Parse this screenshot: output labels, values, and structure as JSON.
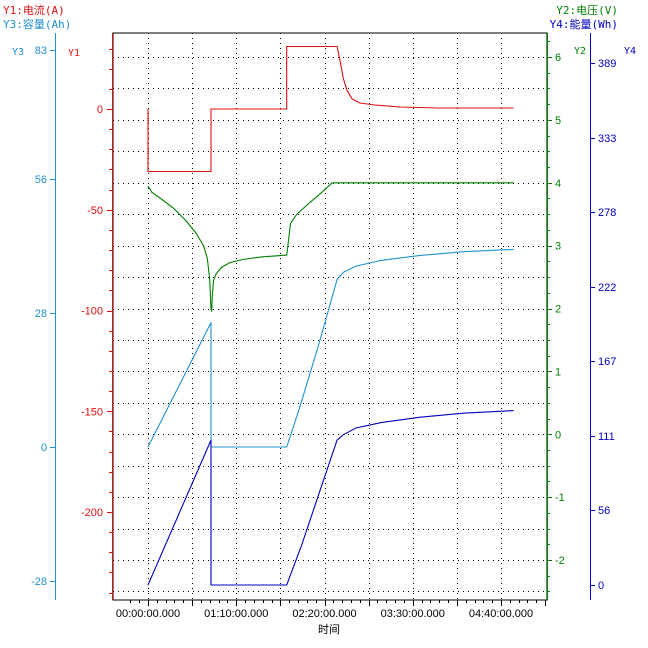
{
  "colors": {
    "y1": "#e01010",
    "y2": "#008000",
    "y3": "#2090d0",
    "y4": "#0000c0",
    "grid": "#000000",
    "frame": "#000000"
  },
  "legend": {
    "y1": "Y1:电流(A)",
    "y3": "Y3:容量(Ah)",
    "y2": "Y2:电压(V)",
    "y4": "Y4:能量(Wh)"
  },
  "axis_names": {
    "y1": "Y1",
    "y2": "Y2",
    "y3": "Y3",
    "y4": "Y4"
  },
  "chart_data": {
    "type": "line",
    "xlabel": "时间",
    "x_ticks": [
      "00:00:00.000",
      "01:10:00.000",
      "02:20:00.000",
      "03:30:00.000",
      "04:40:00.000"
    ],
    "x_range_min": [
      -2.5,
      302
    ],
    "grid": true,
    "axes": {
      "y1": {
        "label": "Y1",
        "unit": "A",
        "range": [
          -243,
          38
        ],
        "ticks": [
          0,
          -50,
          -100,
          -150,
          -200
        ]
      },
      "y2": {
        "label": "Y2",
        "unit": "V",
        "range": [
          -2.64,
          6.26
        ],
        "ticks": [
          6,
          5,
          4,
          3,
          2,
          1,
          0,
          -1,
          -2
        ]
      },
      "y3": {
        "label": "Y3",
        "unit": "Ah",
        "range": [
          -32,
          83
        ],
        "ticks": [
          83,
          56,
          28,
          0,
          -28
        ]
      },
      "y4": {
        "label": "Y4",
        "unit": "Wh",
        "range": [
          0,
          414
        ],
        "ticks": [
          389,
          333,
          278,
          222,
          167,
          111,
          56,
          0
        ]
      }
    },
    "series": [
      {
        "name": "电流(A)",
        "axis": "y1",
        "color": "#e01010",
        "points": [
          [
            0,
            0
          ],
          [
            0,
            -31
          ],
          [
            50,
            -31
          ],
          [
            50,
            0
          ],
          [
            110,
            0
          ],
          [
            110,
            31
          ],
          [
            150,
            31
          ],
          [
            152,
            25
          ],
          [
            155,
            15
          ],
          [
            158,
            9
          ],
          [
            162,
            5
          ],
          [
            168,
            3
          ],
          [
            180,
            2
          ],
          [
            200,
            1
          ],
          [
            230,
            0.5
          ],
          [
            290,
            0.5
          ]
        ]
      },
      {
        "name": "电压(V)",
        "axis": "y2",
        "color": "#008000",
        "points": [
          [
            0,
            3.95
          ],
          [
            3,
            3.85
          ],
          [
            10,
            3.75
          ],
          [
            20,
            3.6
          ],
          [
            30,
            3.4
          ],
          [
            38,
            3.2
          ],
          [
            44,
            3.0
          ],
          [
            47,
            2.8
          ],
          [
            49,
            2.45
          ],
          [
            50,
            2.0
          ],
          [
            50.5,
            1.95
          ],
          [
            51,
            2.2
          ],
          [
            52,
            2.45
          ],
          [
            54,
            2.55
          ],
          [
            58,
            2.65
          ],
          [
            65,
            2.73
          ],
          [
            75,
            2.78
          ],
          [
            90,
            2.82
          ],
          [
            110,
            2.85
          ],
          [
            111,
            3.0
          ],
          [
            113,
            3.35
          ],
          [
            118,
            3.5
          ],
          [
            128,
            3.68
          ],
          [
            138,
            3.85
          ],
          [
            146,
            4.0
          ],
          [
            290,
            4.0
          ]
        ]
      },
      {
        "name": "容量(Ah)",
        "axis": "y3",
        "color": "#2090d0",
        "points": [
          [
            0,
            0
          ],
          [
            50,
            26
          ],
          [
            50,
            0
          ],
          [
            110,
            0
          ],
          [
            120,
            8
          ],
          [
            135,
            21
          ],
          [
            150,
            35
          ],
          [
            155,
            36.5
          ],
          [
            165,
            37.8
          ],
          [
            185,
            39
          ],
          [
            215,
            40
          ],
          [
            250,
            40.8
          ],
          [
            290,
            41.3
          ]
        ]
      },
      {
        "name": "能量(Wh)",
        "axis": "y4",
        "color": "#0000c0",
        "points": [
          [
            0,
            0
          ],
          [
            50,
            108
          ],
          [
            50,
            0
          ],
          [
            110,
            0
          ],
          [
            122,
            30
          ],
          [
            137,
            72
          ],
          [
            150,
            108
          ],
          [
            155,
            112
          ],
          [
            165,
            117
          ],
          [
            185,
            121
          ],
          [
            215,
            125
          ],
          [
            250,
            128
          ],
          [
            290,
            130
          ]
        ]
      }
    ]
  }
}
